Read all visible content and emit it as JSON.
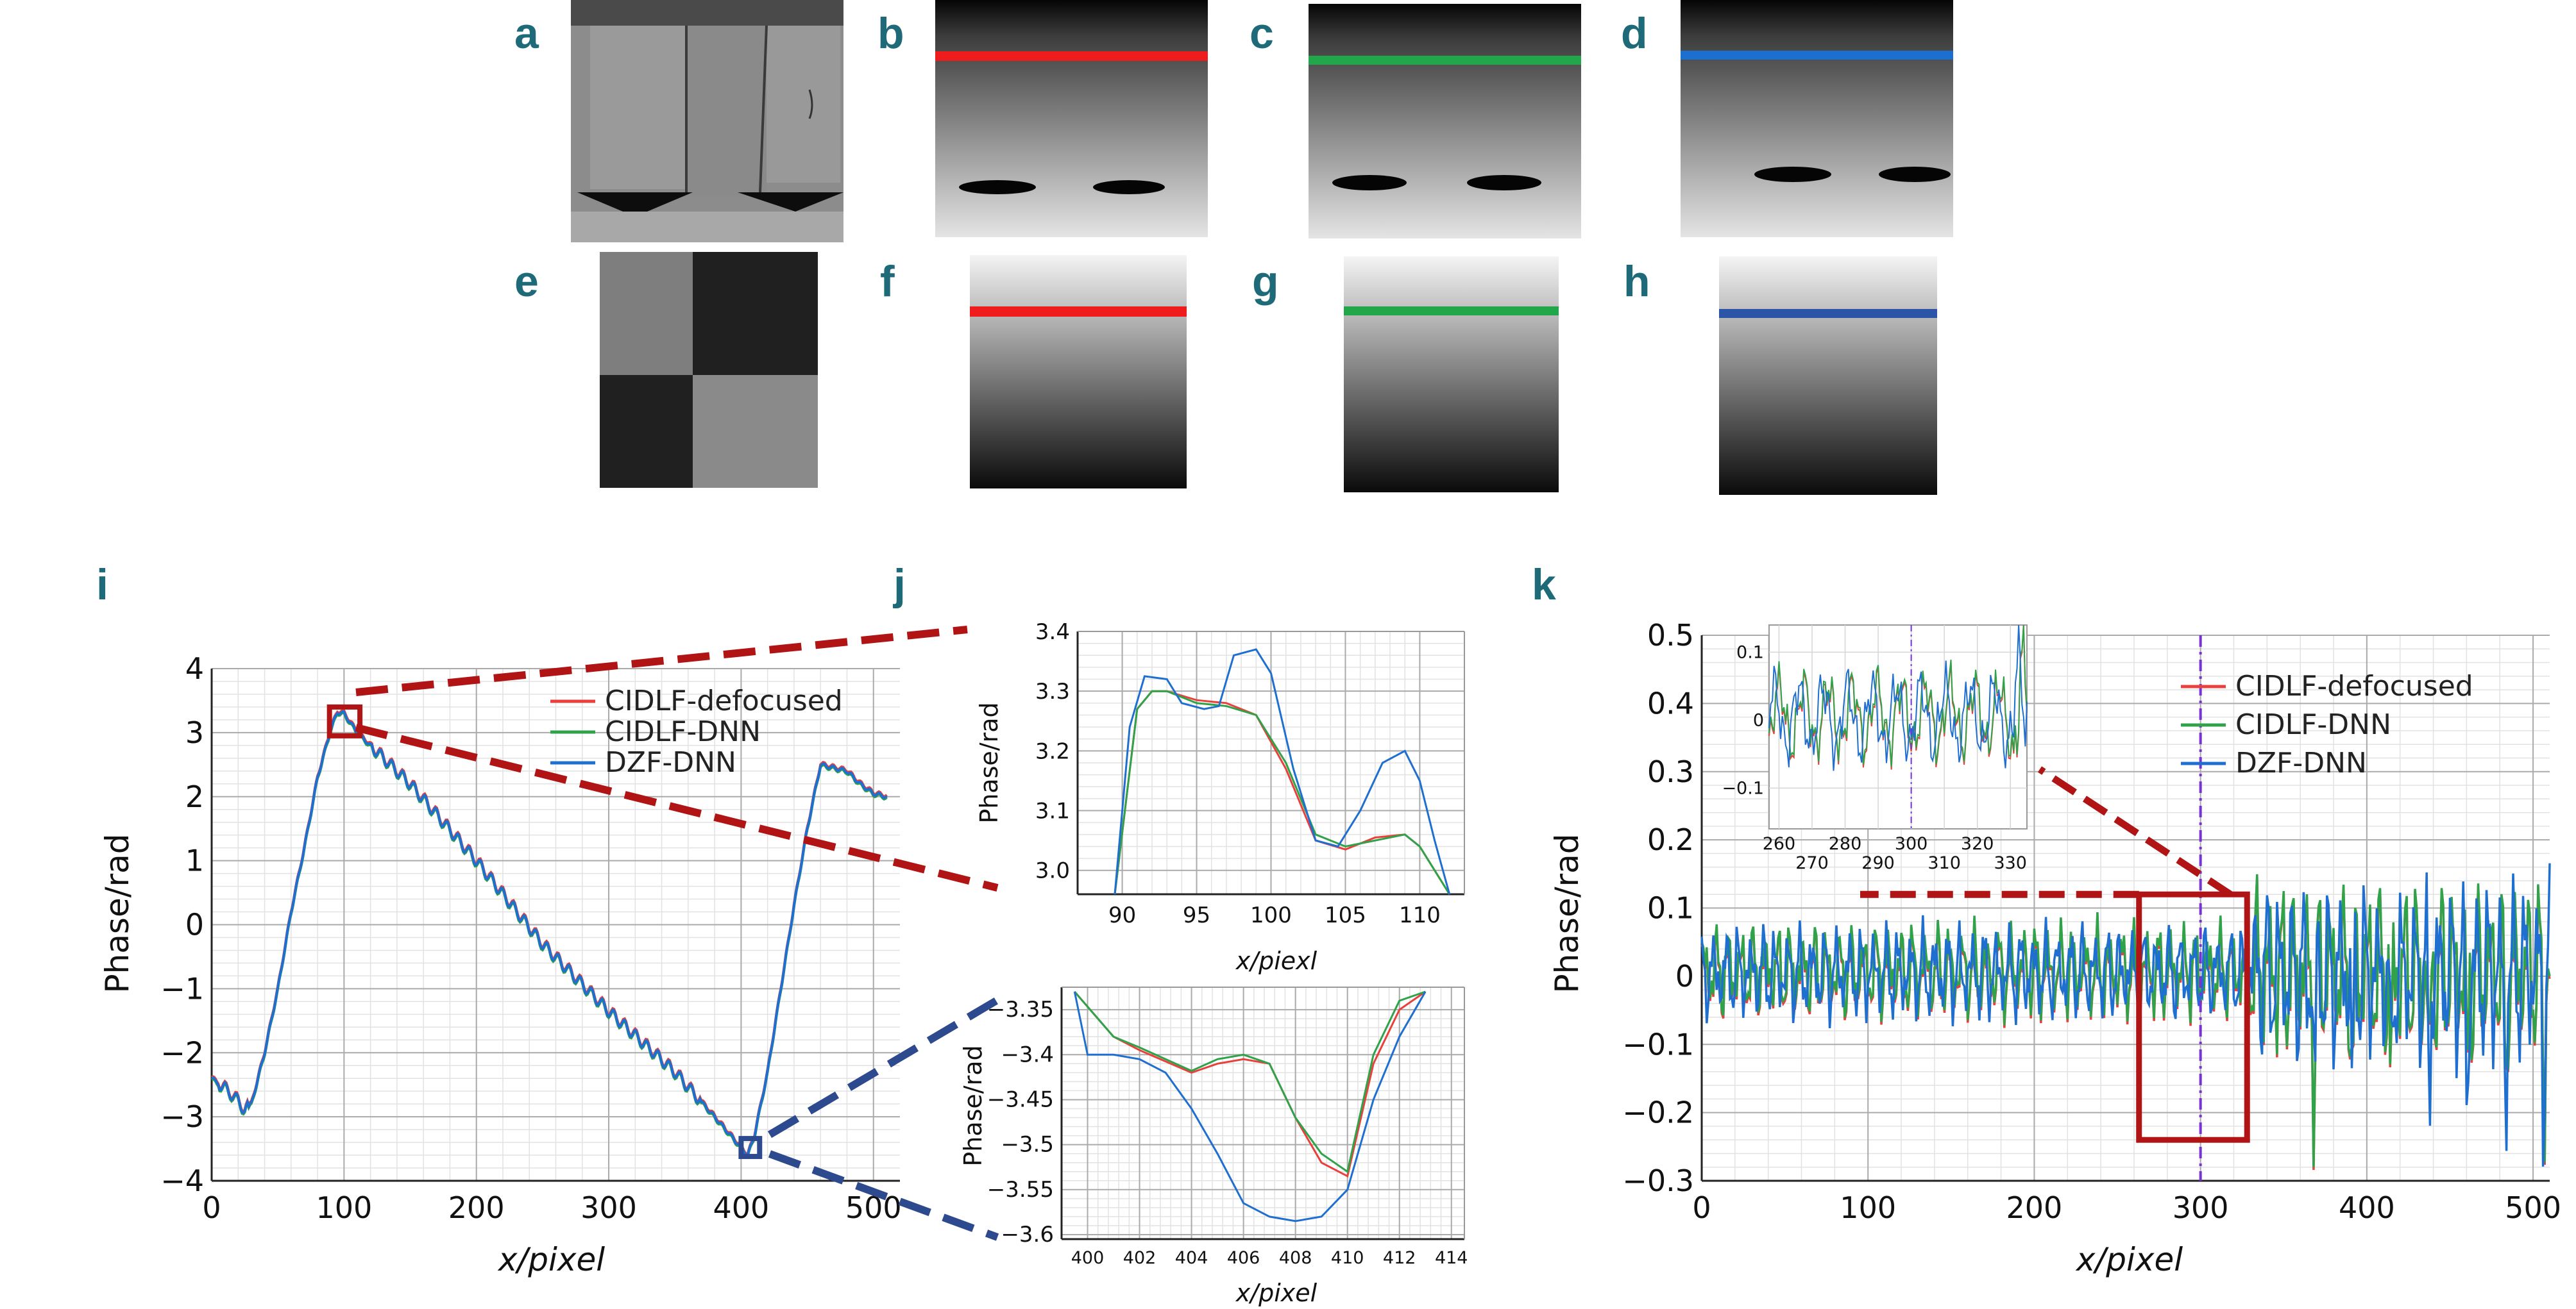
{
  "panel_labels": [
    "a",
    "b",
    "c",
    "d",
    "e",
    "f",
    "g",
    "h",
    "i",
    "j",
    "k"
  ],
  "colors": {
    "defocused": "#e8403c",
    "dnn": "#2fa24a",
    "dzf": "#1f6fd0",
    "zoom_red": "#b01414",
    "zoom_blue": "#2e4a8e",
    "marker_line": "#7a30d8"
  },
  "chart_data": [
    {
      "id": "i",
      "type": "line",
      "xlabel": "x/pixel",
      "ylabel": "Phase/rad",
      "xlim": [
        0,
        520
      ],
      "ylim": [
        -4,
        4
      ],
      "xticks": [
        0,
        100,
        200,
        300,
        400,
        500
      ],
      "yticks": [
        -4,
        -3,
        -2,
        -1,
        0,
        1,
        2,
        3,
        4
      ],
      "grid": true,
      "legend_position": "top-right",
      "series": [
        {
          "name": "CIDLF-defocused",
          "color": "#e8403c"
        },
        {
          "name": "CIDLF-DNN",
          "color": "#2fa24a"
        },
        {
          "name": "DZF-DNN",
          "color": "#1f6fd0"
        }
      ],
      "x": [
        0,
        10,
        20,
        25,
        30,
        40,
        50,
        60,
        70,
        80,
        90,
        95,
        100,
        110,
        130,
        150,
        200,
        250,
        300,
        350,
        380,
        400,
        405,
        410,
        420,
        430,
        440,
        450,
        460,
        480,
        490,
        500,
        510
      ],
      "y": [
        -2.4,
        -2.55,
        -2.75,
        -2.9,
        -2.8,
        -2.0,
        -1.0,
        0.2,
        1.2,
        2.3,
        3.05,
        3.32,
        3.3,
        3.0,
        2.6,
        2.2,
        1.0,
        -0.3,
        -1.35,
        -2.3,
        -3.0,
        -3.48,
        -3.6,
        -3.3,
        -2.3,
        -1.0,
        0.3,
        1.5,
        2.5,
        2.4,
        2.2,
        2.05,
        2.0
      ],
      "zoom_boxes": [
        {
          "x": [
            89,
            112
          ],
          "y": [
            2.95,
            3.4
          ],
          "color": "#b01414"
        },
        {
          "x": [
            400,
            414
          ],
          "y": [
            -3.62,
            -3.34
          ],
          "color": "#2e4a8e"
        }
      ]
    },
    {
      "id": "j-top",
      "type": "line",
      "xlabel": "x/piexl",
      "ylabel": "Phase/rad",
      "xlim": [
        87,
        113
      ],
      "ylim": [
        2.96,
        3.4
      ],
      "xticks": [
        90,
        95,
        100,
        105,
        110
      ],
      "yticks": [
        3.0,
        3.1,
        3.2,
        3.3,
        3.4
      ],
      "grid": true,
      "series": [
        {
          "name": "CIDLF-defocused",
          "color": "#e8403c",
          "x": [
            89.5,
            91,
            92,
            93,
            95,
            97,
            99,
            101,
            103,
            105,
            107,
            109,
            110,
            111,
            112
          ],
          "y": [
            2.96,
            3.27,
            3.3,
            3.3,
            3.285,
            3.28,
            3.26,
            3.17,
            3.05,
            3.035,
            3.055,
            3.06,
            3.04,
            3.0,
            2.96
          ]
        },
        {
          "name": "CIDLF-DNN",
          "color": "#2fa24a",
          "x": [
            89.5,
            91,
            92,
            93,
            95,
            97,
            99,
            101,
            103,
            105,
            107,
            109,
            110,
            111,
            112
          ],
          "y": [
            2.96,
            3.27,
            3.3,
            3.3,
            3.28,
            3.275,
            3.26,
            3.18,
            3.06,
            3.04,
            3.05,
            3.06,
            3.04,
            3.0,
            2.96
          ]
        },
        {
          "name": "DZF-DNN",
          "color": "#1f6fd0",
          "x": [
            89.5,
            90.5,
            91.5,
            93,
            94,
            95.5,
            96.5,
            97.5,
            99,
            100,
            101.5,
            103,
            104.5,
            106,
            107.5,
            109,
            110,
            111,
            112
          ],
          "y": [
            2.96,
            3.24,
            3.325,
            3.32,
            3.28,
            3.27,
            3.275,
            3.36,
            3.37,
            3.33,
            3.17,
            3.05,
            3.04,
            3.1,
            3.18,
            3.2,
            3.15,
            3.05,
            2.96
          ]
        }
      ]
    },
    {
      "id": "j-bottom",
      "type": "line",
      "xlabel": "x/pixel",
      "ylabel": "Phase/rad",
      "xlim": [
        399,
        414.5
      ],
      "ylim": [
        -3.605,
        -3.325
      ],
      "xticks": [
        400,
        402,
        404,
        406,
        408,
        410,
        412,
        414
      ],
      "yticks": [
        -3.35,
        -3.4,
        -3.45,
        -3.5,
        -3.55,
        -3.6
      ],
      "grid": true,
      "series": [
        {
          "name": "CIDLF-defocused",
          "color": "#e8403c",
          "x": [
            399.5,
            401,
            402,
            404,
            405,
            406,
            407,
            408,
            409,
            410,
            411,
            412,
            413
          ],
          "y": [
            -3.33,
            -3.38,
            -3.395,
            -3.42,
            -3.41,
            -3.405,
            -3.41,
            -3.47,
            -3.52,
            -3.535,
            -3.41,
            -3.35,
            -3.33
          ]
        },
        {
          "name": "CIDLF-DNN",
          "color": "#2fa24a",
          "x": [
            399.5,
            401,
            402,
            404,
            405,
            406,
            407,
            408,
            409,
            410,
            411,
            412,
            413
          ],
          "y": [
            -3.33,
            -3.38,
            -3.392,
            -3.418,
            -3.405,
            -3.4,
            -3.41,
            -3.47,
            -3.51,
            -3.53,
            -3.4,
            -3.34,
            -3.33
          ]
        },
        {
          "name": "DZF-DNN",
          "color": "#1f6fd0",
          "x": [
            399.5,
            400,
            401,
            402,
            403,
            404,
            405,
            406,
            407,
            408,
            409,
            410,
            411,
            412,
            413
          ],
          "y": [
            -3.33,
            -3.4,
            -3.4,
            -3.405,
            -3.42,
            -3.46,
            -3.51,
            -3.565,
            -3.58,
            -3.585,
            -3.58,
            -3.55,
            -3.45,
            -3.38,
            -3.33
          ]
        }
      ]
    },
    {
      "id": "k",
      "type": "line",
      "xlabel": "x/pixel",
      "ylabel": "Phase/rad",
      "xlim": [
        0,
        510
      ],
      "ylim": [
        -0.3,
        0.5
      ],
      "xticks": [
        0,
        100,
        200,
        300,
        400,
        500
      ],
      "yticks": [
        -0.3,
        -0.2,
        -0.1,
        0,
        0.1,
        0.2,
        0.3,
        0.4,
        0.5
      ],
      "grid": true,
      "legend_position": "top-right",
      "series": [
        {
          "name": "CIDLF-defocused",
          "color": "#e8403c"
        },
        {
          "name": "CIDLF-DNN",
          "color": "#2fa24a"
        },
        {
          "name": "DZF-DNN",
          "color": "#1f6fd0"
        }
      ],
      "marker_x": 300,
      "zoom_box": {
        "x": [
          263,
          328
        ],
        "y": [
          -0.24,
          0.12
        ]
      },
      "inset": {
        "xlim": [
          257,
          335
        ],
        "ylim": [
          -0.16,
          0.14
        ],
        "xticks_top_row": [
          260,
          280,
          300,
          320
        ],
        "xticks_bottom_row": [
          270,
          290,
          310,
          330
        ],
        "yticks": [
          -0.1,
          0,
          0.1
        ]
      }
    }
  ]
}
